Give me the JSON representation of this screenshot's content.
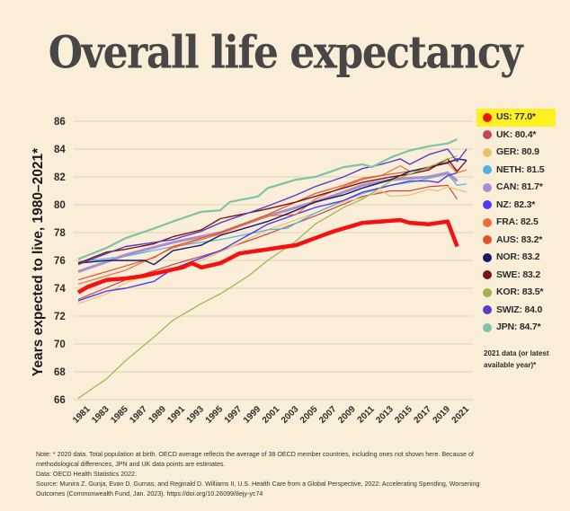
{
  "title": "Overall life expectancy",
  "legend": {
    "items": [
      {
        "label": "US: 77.0*",
        "color": "#F4110F",
        "highlight": true
      },
      {
        "label": "UK: 80.4*",
        "color": "#C8434C"
      },
      {
        "label": "GER: 80.9",
        "color": "#E8C46A"
      },
      {
        "label": "NETH: 81.5",
        "color": "#4BB3E0"
      },
      {
        "label": "CAN: 81.7*",
        "color": "#A98FCB"
      },
      {
        "label": "NZ: 82.3*",
        "color": "#4E3BF0"
      },
      {
        "label": "FRA: 82.5",
        "color": "#EE6E3A"
      },
      {
        "label": "AUS: 83.2*",
        "color": "#E2522A"
      },
      {
        "label": "NOR: 83.2",
        "color": "#151A6A"
      },
      {
        "label": "SWE: 83.2",
        "color": "#7A1418"
      },
      {
        "label": "KOR: 83.5*",
        "color": "#9DB34C"
      },
      {
        "label": "SWIZ: 84.0",
        "color": "#5A3BC8"
      },
      {
        "label": "JPN: 84.7*",
        "color": "#7FC3A6"
      }
    ],
    "note": "2021 data (or latest available year)*"
  },
  "footer": {
    "note_line1": "Note: * 2020 data. Total population at birth. OECD average reflects the average of 38 OECD member countries, including ones not shown here. Because of",
    "note_line2": "methodological differences, JPN and UK data points are estimates.",
    "data_line": "Data: OECD Health Statistics 2022.",
    "source_line1": "Source: Munira Z. Gunja, Evan D. Gumas, and Reginald D. Williams II, U.S. Health Care from a Global Perspective, 2022: Accelerating Spending, Worsening",
    "source_line2": "Outcomes (Commonwealth Fund, Jan. 2023). https://doi.org/10.26099/8ejy-yc74"
  },
  "chart_data": {
    "type": "line",
    "title": "Overall life expectancy",
    "xlabel": "",
    "ylabel": "Years expected to live, 1980–2021*",
    "xlim": [
      1980,
      2021
    ],
    "ylim": [
      66,
      86
    ],
    "yticks": [
      66,
      68,
      70,
      72,
      74,
      76,
      78,
      80,
      82,
      84,
      86
    ],
    "xticks": [
      1981,
      1983,
      1985,
      1987,
      1989,
      1991,
      1993,
      1995,
      1997,
      1999,
      2001,
      2003,
      2005,
      2007,
      2009,
      2011,
      2013,
      2015,
      2017,
      2019,
      2021
    ],
    "grid": true,
    "legend_position": "right",
    "series": [
      {
        "name": "UK",
        "color": "#C8434C",
        "width": 1.2,
        "anchors": [
          [
            1980,
            73.2
          ],
          [
            1985,
            74.6
          ],
          [
            1990,
            75.7
          ],
          [
            1995,
            76.7
          ],
          [
            2000,
            77.9
          ],
          [
            2005,
            79.2
          ],
          [
            2010,
            80.6
          ],
          [
            2013,
            81.0
          ],
          [
            2015,
            81.0
          ],
          [
            2017,
            81.3
          ],
          [
            2019,
            81.4
          ],
          [
            2020,
            80.4
          ]
        ]
      },
      {
        "name": "GER",
        "color": "#E8C46A",
        "width": 1.2,
        "anchors": [
          [
            1980,
            72.9
          ],
          [
            1983,
            73.6
          ],
          [
            1985,
            74.4
          ],
          [
            1988,
            75.1
          ],
          [
            1990,
            75.3
          ],
          [
            1993,
            76.0
          ],
          [
            1995,
            76.6
          ],
          [
            2000,
            78.2
          ],
          [
            2005,
            79.4
          ],
          [
            2008,
            80.2
          ],
          [
            2010,
            80.5
          ],
          [
            2012,
            81.0
          ],
          [
            2013,
            80.6
          ],
          [
            2015,
            80.7
          ],
          [
            2017,
            81.1
          ],
          [
            2018,
            81.0
          ],
          [
            2019,
            81.3
          ],
          [
            2020,
            81.1
          ],
          [
            2021,
            80.9
          ]
        ]
      },
      {
        "name": "NETH",
        "color": "#4BB3E0",
        "width": 1.2,
        "anchors": [
          [
            1980,
            75.9
          ],
          [
            1985,
            76.3
          ],
          [
            1990,
            77.0
          ],
          [
            1995,
            77.5
          ],
          [
            1998,
            77.9
          ],
          [
            2000,
            78.2
          ],
          [
            2002,
            78.3
          ],
          [
            2005,
            79.4
          ],
          [
            2008,
            80.3
          ],
          [
            2010,
            80.8
          ],
          [
            2013,
            81.4
          ],
          [
            2015,
            81.6
          ],
          [
            2017,
            81.9
          ],
          [
            2019,
            82.2
          ],
          [
            2020,
            81.4
          ],
          [
            2021,
            81.5
          ]
        ]
      },
      {
        "name": "CAN",
        "color": "#A98FCB",
        "width": 3.0,
        "anchors": [
          [
            1980,
            75.2
          ],
          [
            1983,
            75.9
          ],
          [
            1985,
            76.4
          ],
          [
            1990,
            77.3
          ],
          [
            1995,
            78.0
          ],
          [
            2000,
            79.2
          ],
          [
            2005,
            80.2
          ],
          [
            2008,
            80.9
          ],
          [
            2010,
            81.4
          ],
          [
            2013,
            81.8
          ],
          [
            2015,
            81.9
          ],
          [
            2017,
            82.0
          ],
          [
            2019,
            82.3
          ],
          [
            2020,
            81.7
          ]
        ]
      },
      {
        "name": "NZ",
        "color": "#4E3BF0",
        "width": 1.4,
        "anchors": [
          [
            1980,
            73.1
          ],
          [
            1983,
            73.8
          ],
          [
            1985,
            74.0
          ],
          [
            1988,
            74.5
          ],
          [
            1990,
            75.4
          ],
          [
            1995,
            76.7
          ],
          [
            2000,
            78.6
          ],
          [
            2005,
            79.8
          ],
          [
            2008,
            80.3
          ],
          [
            2010,
            80.9
          ],
          [
            2013,
            81.4
          ],
          [
            2015,
            81.7
          ],
          [
            2017,
            81.7
          ],
          [
            2018,
            81.6
          ],
          [
            2019,
            82.1
          ],
          [
            2020,
            82.3
          ]
        ]
      },
      {
        "name": "FRA",
        "color": "#EE6E3A",
        "width": 1.2,
        "anchors": [
          [
            1980,
            74.3
          ],
          [
            1985,
            75.3
          ],
          [
            1990,
            76.9
          ],
          [
            1995,
            77.9
          ],
          [
            2000,
            79.2
          ],
          [
            2003,
            79.3
          ],
          [
            2005,
            80.4
          ],
          [
            2008,
            81.3
          ],
          [
            2010,
            81.8
          ],
          [
            2012,
            82.1
          ],
          [
            2014,
            82.8
          ],
          [
            2015,
            82.4
          ],
          [
            2017,
            82.7
          ],
          [
            2019,
            83.0
          ],
          [
            2020,
            82.3
          ],
          [
            2021,
            82.5
          ]
        ]
      },
      {
        "name": "AUS",
        "color": "#E2522A",
        "width": 1.2,
        "anchors": [
          [
            1980,
            74.6
          ],
          [
            1983,
            75.2
          ],
          [
            1985,
            75.6
          ],
          [
            1988,
            76.2
          ],
          [
            1990,
            77.0
          ],
          [
            1995,
            78.0
          ],
          [
            2000,
            79.3
          ],
          [
            2005,
            80.8
          ],
          [
            2008,
            81.4
          ],
          [
            2010,
            81.9
          ],
          [
            2013,
            82.2
          ],
          [
            2015,
            82.4
          ],
          [
            2017,
            82.6
          ],
          [
            2019,
            83.1
          ],
          [
            2020,
            83.2
          ]
        ]
      },
      {
        "name": "NOR",
        "color": "#151A6A",
        "width": 1.4,
        "anchors": [
          [
            1980,
            75.8
          ],
          [
            1983,
            76.0
          ],
          [
            1985,
            76.0
          ],
          [
            1987,
            76.0
          ],
          [
            1988,
            75.7
          ],
          [
            1990,
            76.7
          ],
          [
            1993,
            77.1
          ],
          [
            1995,
            77.8
          ],
          [
            2000,
            78.8
          ],
          [
            2003,
            79.6
          ],
          [
            2005,
            80.2
          ],
          [
            2008,
            80.7
          ],
          [
            2010,
            81.2
          ],
          [
            2013,
            81.8
          ],
          [
            2015,
            82.4
          ],
          [
            2017,
            82.7
          ],
          [
            2019,
            83.0
          ],
          [
            2020,
            83.3
          ],
          [
            2021,
            83.2
          ]
        ]
      },
      {
        "name": "SWE",
        "color": "#7A1418",
        "width": 1.4,
        "anchors": [
          [
            1980,
            75.8
          ],
          [
            1983,
            76.6
          ],
          [
            1985,
            76.8
          ],
          [
            1988,
            77.2
          ],
          [
            1990,
            77.7
          ],
          [
            1993,
            78.2
          ],
          [
            1995,
            79.0
          ],
          [
            2000,
            79.7
          ],
          [
            2003,
            80.2
          ],
          [
            2005,
            80.6
          ],
          [
            2008,
            81.2
          ],
          [
            2010,
            81.6
          ],
          [
            2013,
            82.0
          ],
          [
            2015,
            82.2
          ],
          [
            2017,
            82.5
          ],
          [
            2019,
            83.3
          ],
          [
            2020,
            82.4
          ],
          [
            2021,
            83.2
          ]
        ]
      },
      {
        "name": "KOR",
        "color": "#9DB34C",
        "width": 1.2,
        "anchors": [
          [
            1980,
            66.1
          ],
          [
            1983,
            67.5
          ],
          [
            1985,
            68.8
          ],
          [
            1988,
            70.5
          ],
          [
            1990,
            71.7
          ],
          [
            1993,
            72.9
          ],
          [
            1995,
            73.6
          ],
          [
            1998,
            74.9
          ],
          [
            2000,
            76.0
          ],
          [
            2003,
            77.4
          ],
          [
            2005,
            78.6
          ],
          [
            2008,
            79.8
          ],
          [
            2010,
            80.4
          ],
          [
            2013,
            81.7
          ],
          [
            2015,
            82.2
          ],
          [
            2017,
            82.7
          ],
          [
            2019,
            83.3
          ],
          [
            2020,
            83.5
          ]
        ]
      },
      {
        "name": "SWIZ",
        "color": "#5A3BC8",
        "width": 1.4,
        "anchors": [
          [
            1980,
            75.7
          ],
          [
            1983,
            76.5
          ],
          [
            1985,
            77.0
          ],
          [
            1988,
            77.3
          ],
          [
            1990,
            77.5
          ],
          [
            1993,
            78.1
          ],
          [
            1995,
            78.7
          ],
          [
            2000,
            79.9
          ],
          [
            2003,
            80.7
          ],
          [
            2005,
            81.3
          ],
          [
            2008,
            82.0
          ],
          [
            2010,
            82.6
          ],
          [
            2012,
            82.9
          ],
          [
            2014,
            83.3
          ],
          [
            2015,
            82.9
          ],
          [
            2017,
            83.6
          ],
          [
            2019,
            84.0
          ],
          [
            2020,
            83.1
          ],
          [
            2021,
            84.0
          ]
        ]
      },
      {
        "name": "JPN",
        "color": "#7FC3A6",
        "width": 2.2,
        "anchors": [
          [
            1980,
            76.1
          ],
          [
            1983,
            76.9
          ],
          [
            1985,
            77.6
          ],
          [
            1988,
            78.3
          ],
          [
            1990,
            78.8
          ],
          [
            1993,
            79.5
          ],
          [
            1995,
            79.6
          ],
          [
            1996,
            80.2
          ],
          [
            1999,
            80.6
          ],
          [
            2000,
            81.2
          ],
          [
            2003,
            81.8
          ],
          [
            2005,
            82.0
          ],
          [
            2008,
            82.7
          ],
          [
            2010,
            82.9
          ],
          [
            2011,
            82.7
          ],
          [
            2013,
            83.4
          ],
          [
            2015,
            83.9
          ],
          [
            2017,
            84.2
          ],
          [
            2019,
            84.4
          ],
          [
            2020,
            84.7
          ]
        ]
      },
      {
        "name": "US",
        "color": "#F4110F",
        "width": 4.5,
        "anchors": [
          [
            1980,
            73.7
          ],
          [
            1981,
            74.1
          ],
          [
            1983,
            74.6
          ],
          [
            1985,
            74.7
          ],
          [
            1987,
            74.9
          ],
          [
            1989,
            75.2
          ],
          [
            1991,
            75.5
          ],
          [
            1992,
            75.8
          ],
          [
            1993,
            75.5
          ],
          [
            1995,
            75.8
          ],
          [
            1997,
            76.5
          ],
          [
            1999,
            76.7
          ],
          [
            2001,
            76.9
          ],
          [
            2003,
            77.1
          ],
          [
            2005,
            77.6
          ],
          [
            2007,
            78.1
          ],
          [
            2009,
            78.5
          ],
          [
            2010,
            78.7
          ],
          [
            2012,
            78.8
          ],
          [
            2014,
            78.9
          ],
          [
            2015,
            78.7
          ],
          [
            2017,
            78.6
          ],
          [
            2019,
            78.8
          ],
          [
            2020,
            77.0
          ]
        ]
      }
    ]
  }
}
